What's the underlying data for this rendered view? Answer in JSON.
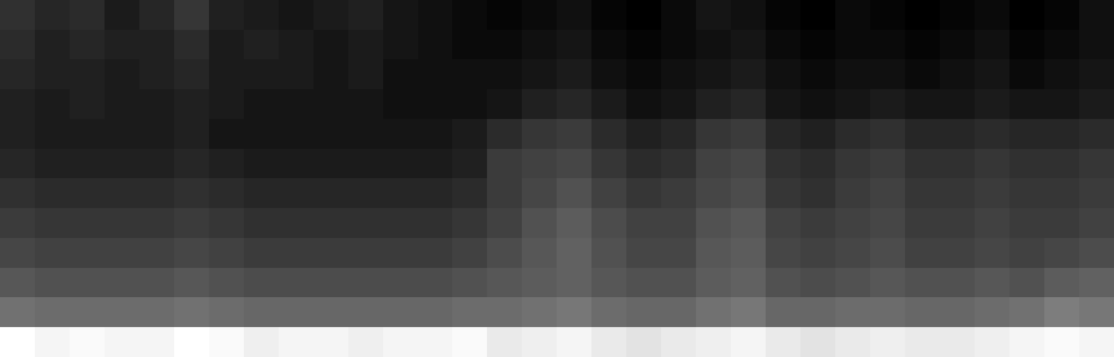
{
  "chart_data": {
    "type": "heatmap",
    "tick_labels": false,
    "color": "gray",
    "cells": [
      [
        0.24,
        0.22,
        0.23,
        0.2,
        0.22,
        0.25,
        0.21,
        0.2,
        0.19,
        0.2,
        0.21,
        0.19,
        0.18,
        0.17,
        0.16,
        0.17,
        0.18,
        0.16,
        0.15,
        0.17,
        0.19,
        0.18,
        0.16,
        0.15,
        0.17,
        0.16,
        0.15,
        0.16,
        0.17,
        0.15,
        0.16,
        0.18
      ],
      [
        0.23,
        0.21,
        0.22,
        0.21,
        0.21,
        0.23,
        0.2,
        0.21,
        0.2,
        0.19,
        0.2,
        0.19,
        0.18,
        0.17,
        0.17,
        0.18,
        0.19,
        0.17,
        0.16,
        0.17,
        0.18,
        0.19,
        0.17,
        0.16,
        0.17,
        0.17,
        0.16,
        0.17,
        0.18,
        0.16,
        0.17,
        0.18
      ],
      [
        0.22,
        0.21,
        0.21,
        0.2,
        0.21,
        0.22,
        0.2,
        0.2,
        0.2,
        0.19,
        0.2,
        0.18,
        0.18,
        0.18,
        0.18,
        0.19,
        0.2,
        0.18,
        0.17,
        0.18,
        0.19,
        0.2,
        0.18,
        0.17,
        0.18,
        0.18,
        0.17,
        0.18,
        0.19,
        0.17,
        0.18,
        0.19
      ],
      [
        0.21,
        0.2,
        0.21,
        0.2,
        0.2,
        0.21,
        0.2,
        0.19,
        0.19,
        0.19,
        0.19,
        0.18,
        0.18,
        0.18,
        0.19,
        0.21,
        0.22,
        0.2,
        0.18,
        0.19,
        0.21,
        0.22,
        0.19,
        0.18,
        0.19,
        0.2,
        0.19,
        0.19,
        0.2,
        0.19,
        0.19,
        0.2
      ],
      [
        0.21,
        0.2,
        0.2,
        0.2,
        0.2,
        0.21,
        0.19,
        0.19,
        0.19,
        0.19,
        0.19,
        0.19,
        0.19,
        0.2,
        0.23,
        0.25,
        0.26,
        0.23,
        0.21,
        0.22,
        0.25,
        0.26,
        0.22,
        0.21,
        0.23,
        0.24,
        0.22,
        0.22,
        0.23,
        0.22,
        0.22,
        0.23
      ],
      [
        0.22,
        0.21,
        0.21,
        0.21,
        0.21,
        0.22,
        0.21,
        0.2,
        0.2,
        0.2,
        0.2,
        0.2,
        0.2,
        0.21,
        0.26,
        0.27,
        0.28,
        0.25,
        0.23,
        0.24,
        0.27,
        0.28,
        0.24,
        0.23,
        0.25,
        0.26,
        0.24,
        0.24,
        0.25,
        0.24,
        0.24,
        0.25
      ],
      [
        0.24,
        0.23,
        0.23,
        0.23,
        0.23,
        0.24,
        0.23,
        0.22,
        0.22,
        0.22,
        0.22,
        0.22,
        0.22,
        0.23,
        0.26,
        0.28,
        0.3,
        0.27,
        0.25,
        0.26,
        0.28,
        0.29,
        0.25,
        0.24,
        0.26,
        0.27,
        0.25,
        0.25,
        0.26,
        0.25,
        0.25,
        0.26
      ],
      [
        0.26,
        0.25,
        0.25,
        0.25,
        0.25,
        0.26,
        0.25,
        0.24,
        0.24,
        0.24,
        0.24,
        0.24,
        0.24,
        0.25,
        0.27,
        0.3,
        0.32,
        0.29,
        0.27,
        0.27,
        0.3,
        0.31,
        0.27,
        0.26,
        0.27,
        0.28,
        0.26,
        0.26,
        0.27,
        0.26,
        0.26,
        0.27
      ],
      [
        0.28,
        0.27,
        0.27,
        0.27,
        0.27,
        0.28,
        0.27,
        0.26,
        0.26,
        0.26,
        0.26,
        0.26,
        0.26,
        0.27,
        0.29,
        0.31,
        0.33,
        0.3,
        0.28,
        0.28,
        0.31,
        0.32,
        0.28,
        0.27,
        0.28,
        0.29,
        0.27,
        0.27,
        0.28,
        0.27,
        0.28,
        0.29
      ],
      [
        0.31,
        0.3,
        0.3,
        0.3,
        0.3,
        0.31,
        0.3,
        0.29,
        0.29,
        0.29,
        0.29,
        0.29,
        0.29,
        0.3,
        0.31,
        0.32,
        0.33,
        0.31,
        0.3,
        0.3,
        0.32,
        0.33,
        0.3,
        0.29,
        0.3,
        0.31,
        0.3,
        0.3,
        0.31,
        0.3,
        0.32,
        0.33
      ],
      [
        0.36,
        0.35,
        0.35,
        0.35,
        0.35,
        0.36,
        0.35,
        0.34,
        0.34,
        0.34,
        0.34,
        0.34,
        0.34,
        0.35,
        0.35,
        0.36,
        0.37,
        0.35,
        0.34,
        0.34,
        0.36,
        0.37,
        0.34,
        0.34,
        0.35,
        0.35,
        0.34,
        0.34,
        0.35,
        0.36,
        0.38,
        0.37
      ],
      [
        0.62,
        0.6,
        0.61,
        0.6,
        0.6,
        0.62,
        0.61,
        0.59,
        0.6,
        0.6,
        0.59,
        0.6,
        0.6,
        0.61,
        0.58,
        0.59,
        0.6,
        0.58,
        0.57,
        0.58,
        0.59,
        0.6,
        0.58,
        0.57,
        0.58,
        0.59,
        0.58,
        0.58,
        0.59,
        0.6,
        0.61,
        0.6
      ]
    ]
  }
}
